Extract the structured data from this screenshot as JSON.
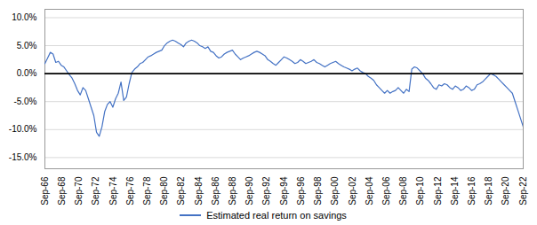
{
  "chart_data": {
    "type": "line",
    "series": [
      {
        "name": "Estimated real return on savings",
        "color": "#4472C4",
        "values": [
          0.018,
          0.028,
          0.038,
          0.035,
          0.02,
          0.022,
          0.015,
          0.012,
          0.005,
          -0.002,
          -0.008,
          -0.018,
          -0.03,
          -0.038,
          -0.025,
          -0.03,
          -0.045,
          -0.06,
          -0.075,
          -0.105,
          -0.112,
          -0.095,
          -0.068,
          -0.055,
          -0.05,
          -0.06,
          -0.045,
          -0.035,
          -0.015,
          -0.048,
          -0.042,
          -0.018,
          0.002,
          0.008,
          0.012,
          0.018,
          0.02,
          0.025,
          0.03,
          0.032,
          0.035,
          0.038,
          0.04,
          0.042,
          0.05,
          0.055,
          0.058,
          0.06,
          0.058,
          0.055,
          0.052,
          0.048,
          0.055,
          0.058,
          0.06,
          0.058,
          0.055,
          0.05,
          0.048,
          0.045,
          0.048,
          0.04,
          0.038,
          0.032,
          0.028,
          0.03,
          0.035,
          0.038,
          0.04,
          0.042,
          0.035,
          0.03,
          0.025,
          0.028,
          0.03,
          0.032,
          0.035,
          0.038,
          0.04,
          0.038,
          0.035,
          0.032,
          0.025,
          0.022,
          0.018,
          0.015,
          0.02,
          0.025,
          0.03,
          0.028,
          0.025,
          0.022,
          0.018,
          0.02,
          0.025,
          0.022,
          0.018,
          0.02,
          0.022,
          0.025,
          0.02,
          0.018,
          0.015,
          0.012,
          0.015,
          0.018,
          0.02,
          0.022,
          0.018,
          0.015,
          0.012,
          0.01,
          0.008,
          0.005,
          0.008,
          0.01,
          0.005,
          0.002,
          0.0,
          -0.005,
          -0.008,
          -0.012,
          -0.02,
          -0.025,
          -0.03,
          -0.035,
          -0.03,
          -0.035,
          -0.032,
          -0.03,
          -0.025,
          -0.03,
          -0.035,
          -0.028,
          -0.032,
          0.008,
          0.012,
          0.01,
          0.005,
          0.0,
          -0.008,
          -0.012,
          -0.018,
          -0.025,
          -0.028,
          -0.02,
          -0.022,
          -0.018,
          -0.02,
          -0.025,
          -0.028,
          -0.022,
          -0.025,
          -0.03,
          -0.028,
          -0.022,
          -0.025,
          -0.03,
          -0.028,
          -0.02,
          -0.018,
          -0.015,
          -0.01,
          -0.005,
          0.0,
          -0.002,
          -0.005,
          -0.01,
          -0.015,
          -0.02,
          -0.025,
          -0.03,
          -0.035,
          -0.05,
          -0.065,
          -0.08,
          -0.095
        ]
      }
    ],
    "x": [
      0,
      1,
      2,
      3,
      4,
      5,
      6,
      7,
      8,
      9,
      10,
      11,
      12,
      13,
      14,
      15,
      16,
      17,
      18,
      19,
      20,
      21,
      22,
      23,
      24,
      25,
      26,
      27,
      28,
      29,
      30,
      31,
      32,
      33,
      34,
      35,
      36,
      37,
      38,
      39,
      40,
      41,
      42,
      43,
      44,
      45,
      46,
      47,
      48,
      49,
      50,
      51,
      52,
      53,
      54,
      55,
      56,
      57,
      58,
      59,
      60,
      61,
      62,
      63,
      64,
      65,
      66,
      67,
      68,
      69,
      70,
      71,
      72,
      73,
      74,
      75,
      76,
      77,
      78,
      79,
      80,
      81,
      82,
      83,
      84,
      85,
      86,
      87,
      88,
      89,
      90,
      91,
      92,
      93,
      94,
      95,
      96,
      97,
      98,
      99,
      100,
      101,
      102,
      103,
      104,
      105,
      106,
      107,
      108,
      109,
      110,
      111,
      112,
      113,
      114,
      115,
      116,
      117,
      118,
      119,
      120,
      121,
      122,
      123,
      124,
      125,
      126,
      127,
      128,
      129,
      130,
      131,
      132,
      133,
      134,
      135,
      136,
      137,
      138,
      139,
      140,
      141,
      142,
      143,
      144,
      145,
      146,
      147,
      148,
      149,
      150,
      151,
      152,
      153,
      154,
      155,
      156,
      157,
      158,
      159,
      160,
      161,
      162,
      163,
      164,
      165,
      166,
      167,
      168,
      169,
      170,
      171,
      172,
      173,
      174,
      175,
      176
    ],
    "xlim": [
      0,
      176
    ],
    "xticks": [
      {
        "value": 0,
        "label": "Sep-66"
      },
      {
        "value": 6.285714285714286,
        "label": "Sep-68"
      },
      {
        "value": 12.571428571428571,
        "label": "Sep-70"
      },
      {
        "value": 18.857142857142858,
        "label": "Sep-72"
      },
      {
        "value": 25.142857142857142,
        "label": "Sep-74"
      },
      {
        "value": 31.428571428571427,
        "label": "Sep-76"
      },
      {
        "value": 37.714285714285715,
        "label": "Sep-78"
      },
      {
        "value": 44,
        "label": "Sep-80"
      },
      {
        "value": 50.285714285714285,
        "label": "Sep-82"
      },
      {
        "value": 56.57142857142857,
        "label": "Sep-84"
      },
      {
        "value": 62.857142857142854,
        "label": "Sep-86"
      },
      {
        "value": 69.14285714285714,
        "label": "Sep-88"
      },
      {
        "value": 75.42857142857143,
        "label": "Sep-90"
      },
      {
        "value": 81.71428571428571,
        "label": "Sep-92"
      },
      {
        "value": 88,
        "label": "Sep-94"
      },
      {
        "value": 94.28571428571429,
        "label": "Sep-96"
      },
      {
        "value": 100.57142857142857,
        "label": "Sep-98"
      },
      {
        "value": 106.85714285714286,
        "label": "Sep-00"
      },
      {
        "value": 113.14285714285714,
        "label": "Sep-02"
      },
      {
        "value": 119.42857142857143,
        "label": "Sep-04"
      },
      {
        "value": 125.71428571428571,
        "label": "Sep-06"
      },
      {
        "value": 132,
        "label": "Sep-08"
      },
      {
        "value": 138.28571428571428,
        "label": "Sep-10"
      },
      {
        "value": 144.57142857142858,
        "label": "Sep-12"
      },
      {
        "value": 150.85714285714286,
        "label": "Sep-14"
      },
      {
        "value": 157.14285714285714,
        "label": "Sep-16"
      },
      {
        "value": 163.42857142857142,
        "label": "Sep-18"
      },
      {
        "value": 169.71428571428572,
        "label": "Sep-20"
      },
      {
        "value": 176,
        "label": "Sep-22"
      }
    ],
    "ylim": [
      -0.17,
      0.115
    ],
    "yticks": [
      {
        "value": -0.15,
        "label": "-15.0%"
      },
      {
        "value": -0.1,
        "label": "-10.0%"
      },
      {
        "value": -0.05,
        "label": "-5.0%"
      },
      {
        "value": 0.0,
        "label": "0.0%"
      },
      {
        "value": 0.05,
        "label": "5.0%"
      },
      {
        "value": 0.1,
        "label": "10.0%"
      }
    ],
    "grid": true,
    "legend": "bottom"
  }
}
